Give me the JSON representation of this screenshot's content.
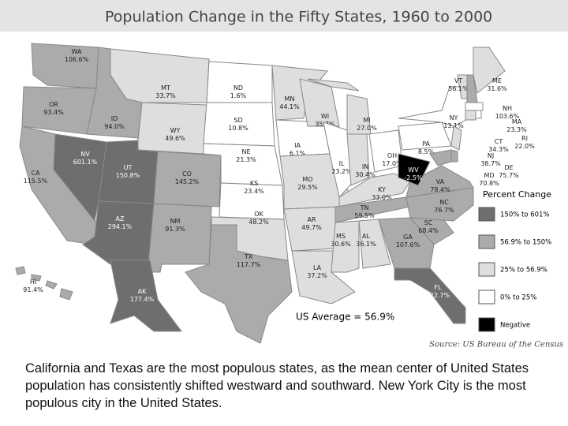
{
  "title": "Population Change in the Fifty States, 1960 to 2000",
  "states": [
    {
      "abbr": "WA",
      "label": "106.6%",
      "class": 1
    },
    {
      "abbr": "OR",
      "label": "93.4%",
      "class": 1
    },
    {
      "abbr": "CA",
      "label": "115.5%",
      "class": 1
    },
    {
      "abbr": "NV",
      "label": "601.1%",
      "class": 0
    },
    {
      "abbr": "ID",
      "label": "94.0%",
      "class": 1
    },
    {
      "abbr": "MT",
      "label": "33.7%",
      "class": 2
    },
    {
      "abbr": "WY",
      "label": "49.6%",
      "class": 2
    },
    {
      "abbr": "UT",
      "label": "150.8%",
      "class": 0
    },
    {
      "abbr": "AZ",
      "label": "294.1%",
      "class": 0
    },
    {
      "abbr": "CO",
      "label": "145.2%",
      "class": 1
    },
    {
      "abbr": "NM",
      "label": "91.3%",
      "class": 1
    },
    {
      "abbr": "ND",
      "label": "1.6%",
      "class": 3
    },
    {
      "abbr": "SD",
      "label": "10.8%",
      "class": 3
    },
    {
      "abbr": "NE",
      "label": "21.3%",
      "class": 3
    },
    {
      "abbr": "KS",
      "label": "23.4%",
      "class": 3
    },
    {
      "abbr": "OK",
      "label": "48.2%",
      "class": 2
    },
    {
      "abbr": "TX",
      "label": "117.7%",
      "class": 1
    },
    {
      "abbr": "MN",
      "label": "44.1%",
      "class": 2
    },
    {
      "abbr": "IA",
      "label": "6.1%",
      "class": 3
    },
    {
      "abbr": "MO",
      "label": "29.5%",
      "class": 2
    },
    {
      "abbr": "AR",
      "label": "49.7%",
      "class": 2
    },
    {
      "abbr": "LA",
      "label": "37.2%",
      "class": 2
    },
    {
      "abbr": "WI",
      "label": "35.7%",
      "class": 2
    },
    {
      "abbr": "IL",
      "label": "23.2%",
      "class": 3
    },
    {
      "abbr": "MI",
      "label": "27.0%",
      "class": 2
    },
    {
      "abbr": "IN",
      "label": "30.4%",
      "class": 2
    },
    {
      "abbr": "OH",
      "label": "17.0%",
      "class": 3
    },
    {
      "abbr": "KY",
      "label": "33.0%",
      "class": 2
    },
    {
      "abbr": "TN",
      "label": "59.5%",
      "class": 1
    },
    {
      "abbr": "MS",
      "label": "30.6%",
      "class": 2
    },
    {
      "abbr": "AL",
      "label": "36.1%",
      "class": 2
    },
    {
      "abbr": "GA",
      "label": "107.6%",
      "class": 1
    },
    {
      "abbr": "FL",
      "label": "222.7%",
      "class": 0
    },
    {
      "abbr": "SC",
      "label": "68.4%",
      "class": 1
    },
    {
      "abbr": "NC",
      "label": "76.7%",
      "class": 1
    },
    {
      "abbr": "VA",
      "label": "78.4%",
      "class": 1
    },
    {
      "abbr": "WV",
      "label": "-2.5%",
      "class": 4
    },
    {
      "abbr": "PA",
      "label": "8.5%",
      "class": 3
    },
    {
      "abbr": "NY",
      "label": "13.1%",
      "class": 3
    },
    {
      "abbr": "VT",
      "label": "56.1%",
      "class": 2
    },
    {
      "abbr": "NH",
      "label": "103.6%",
      "class": 1
    },
    {
      "abbr": "ME",
      "label": "31.6%",
      "class": 2
    },
    {
      "abbr": "MA",
      "label": "23.3%",
      "class": 3
    },
    {
      "abbr": "RI",
      "label": "22.0%",
      "class": 3
    },
    {
      "abbr": "CT",
      "label": "34.3%",
      "class": 2
    },
    {
      "abbr": "NJ",
      "label": "38.7%",
      "class": 2
    },
    {
      "abbr": "DE",
      "label": "75.7%",
      "class": 1
    },
    {
      "abbr": "MD",
      "label": "70.8%",
      "class": 1
    },
    {
      "abbr": "HI",
      "label": "91.4%",
      "class": 1
    },
    {
      "abbr": "AK",
      "label": "177.4%",
      "class": 0
    }
  ],
  "legend": {
    "title": "Percent Change",
    "items": [
      {
        "label": "150% to 601%",
        "color": "#6e6e6e"
      },
      {
        "label": "56.9% to 150%",
        "color": "#ababab"
      },
      {
        "label": "25% to 56.9%",
        "color": "#dedede"
      },
      {
        "label": "0% to 25%",
        "color": "#ffffff"
      },
      {
        "label": "Negative",
        "color": "#000000"
      }
    ]
  },
  "average": "US Average = 56.9%",
  "source": "Source: US Bureau of the Census",
  "caption": "California and Texas are the most populous states, as the mean center of United States population has consistently shifted westward and southward. New York City is the most populous city in the United States."
}
